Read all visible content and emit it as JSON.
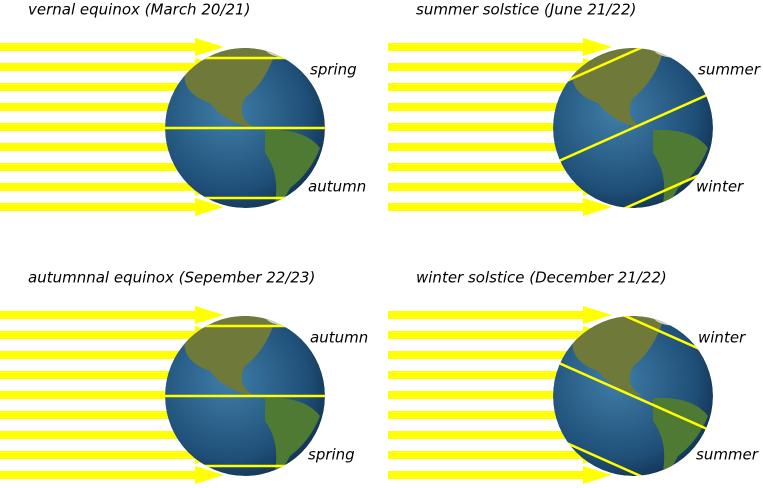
{
  "panels": [
    {
      "title": "vernal equinox (March 20/21)",
      "label_top": "spring",
      "label_bottom": "autumn"
    },
    {
      "title": "summer solstice (June 21/22)",
      "label_top": "summer",
      "label_bottom": "winter"
    },
    {
      "title": "autumnnal equinox (Sepember 22/23)",
      "label_top": "autumn",
      "label_bottom": "spring"
    },
    {
      "title": "winter solstice (December 21/22)",
      "label_top": "winter",
      "label_bottom": "summer"
    }
  ]
}
